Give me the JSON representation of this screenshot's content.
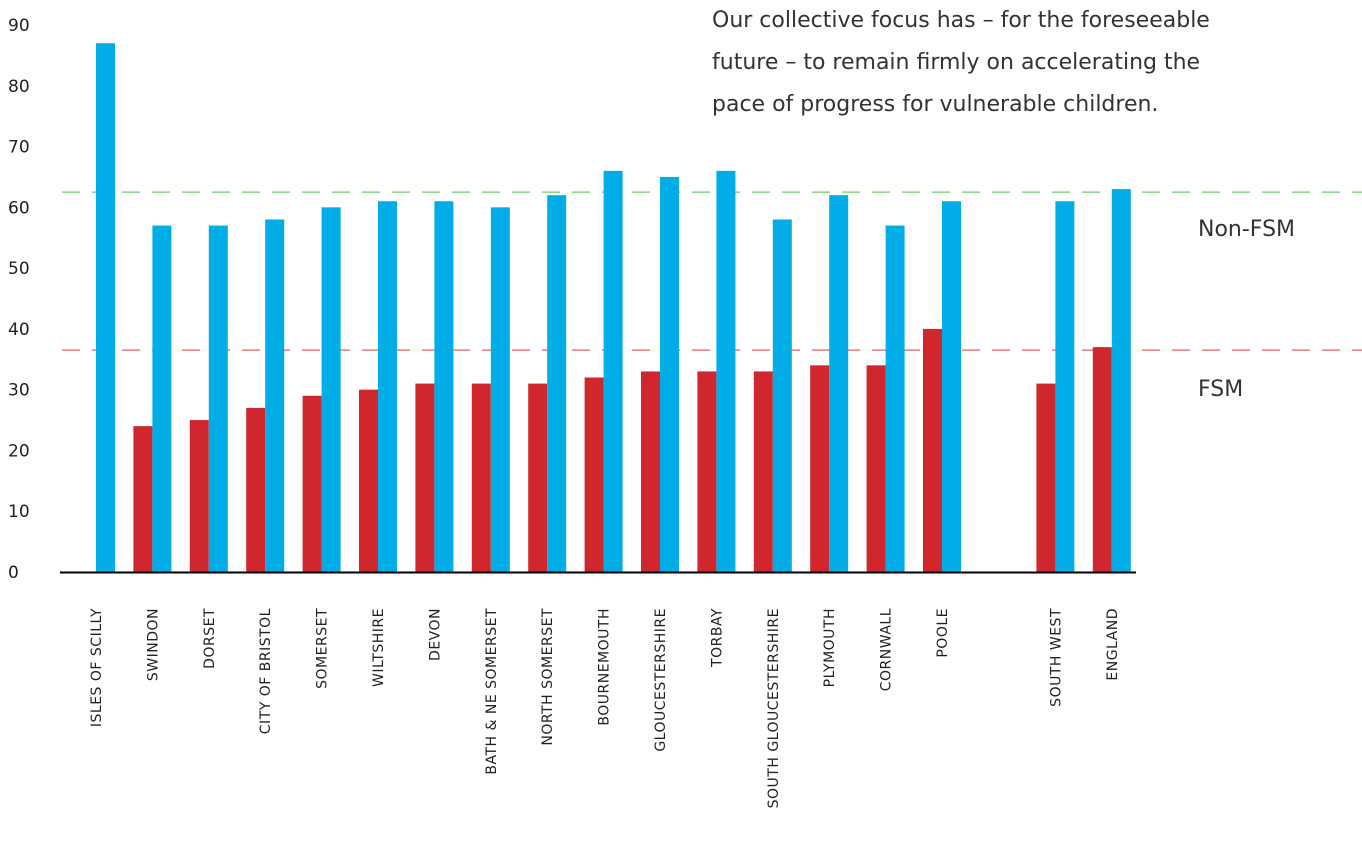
{
  "annotation": {
    "lines": [
      "Our collective focus has – for the foreseeable",
      "future – to remain firmly on accelerating the",
      "pace of progress for vulnerable children."
    ]
  },
  "reference_lines": {
    "non_fsm": {
      "label": "Non-FSM",
      "value": 62.5,
      "color": "#6ccf6c"
    },
    "fsm": {
      "label": "FSM",
      "value": 36.5,
      "color": "#e06060"
    }
  },
  "colors": {
    "fsm": "#d0272f",
    "non_fsm": "#00ade6",
    "axis": "#000000"
  },
  "chart_data": {
    "type": "bar",
    "ylim": [
      0,
      90
    ],
    "yticks": [
      0,
      10,
      20,
      30,
      40,
      50,
      60,
      70,
      80,
      90
    ],
    "categories": [
      "ISLES OF SCILLY",
      "SWINDON",
      "DORSET",
      "CITY OF BRISTOL",
      "SOMERSET",
      "WILTSHIRE",
      "DEVON",
      "BATH & NE SOMERSET",
      "NORTH SOMERSET",
      "BOURNEMOUTH",
      "GLOUCESTERSHIRE",
      "TORBAY",
      "SOUTH GLOUCESTERSHIRE",
      "PLYMOUTH",
      "CORNWALL",
      "POOLE",
      "SOUTH WEST",
      "ENGLAND"
    ],
    "series": [
      {
        "name": "FSM",
        "values": [
          null,
          24,
          25,
          27,
          29,
          30,
          31,
          31,
          31,
          32,
          33,
          33,
          33,
          34,
          34,
          40,
          31,
          37
        ]
      },
      {
        "name": "Non-FSM",
        "values": [
          87,
          57,
          57,
          58,
          60,
          61,
          61,
          60,
          62,
          66,
          65,
          66,
          58,
          62,
          57,
          61,
          61,
          63
        ]
      }
    ]
  }
}
